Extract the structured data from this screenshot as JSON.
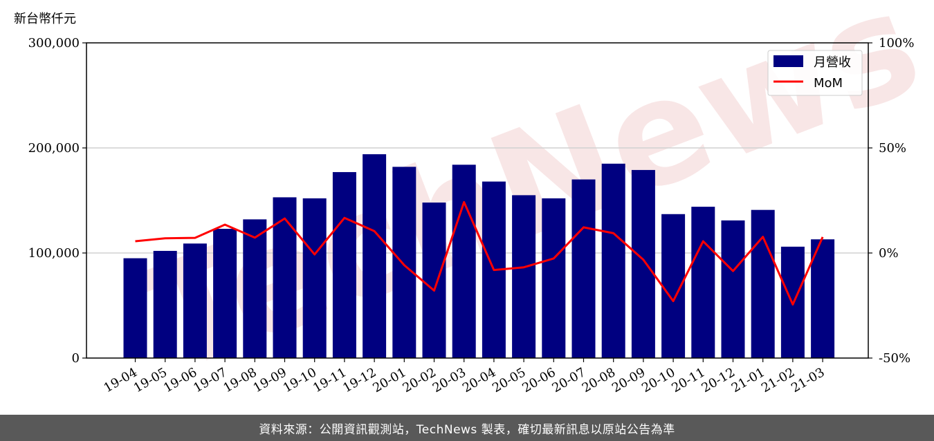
{
  "chart_data": {
    "type": "bar",
    "left_axis_unit": "新台幣仟元",
    "categories": [
      "19-04",
      "19-05",
      "19-06",
      "19-07",
      "19-08",
      "19-09",
      "19-10",
      "19-11",
      "19-12",
      "20-01",
      "20-02",
      "20-03",
      "20-04",
      "20-05",
      "20-06",
      "20-07",
      "20-08",
      "20-09",
      "20-10",
      "20-11",
      "20-12",
      "21-01",
      "21-02",
      "21-03"
    ],
    "series": [
      {
        "name": "月營收",
        "type": "bar",
        "axis": "left",
        "color": "#000080",
        "values": [
          95000,
          102000,
          109000,
          123000,
          132000,
          153000,
          152000,
          177000,
          194000,
          182000,
          148000,
          184000,
          168000,
          155000,
          152000,
          170000,
          185000,
          179000,
          137000,
          144000,
          131000,
          141000,
          106000,
          113000
        ]
      },
      {
        "name": "MoM",
        "type": "line",
        "axis": "right",
        "color": "#ff0000",
        "values": [
          5.6,
          7.0,
          7.2,
          13.5,
          7.3,
          16.4,
          -0.7,
          16.7,
          10.4,
          -5.8,
          -17.9,
          24.2,
          -8.1,
          -6.8,
          -2.6,
          12.2,
          9.4,
          -3.2,
          -22.9,
          5.6,
          -8.6,
          7.7,
          -24.5,
          7.6
        ]
      }
    ],
    "ylim": [
      0,
      300000
    ],
    "y_ticks": [
      "0",
      "100,000",
      "200,000",
      "300,000"
    ],
    "y2lim": [
      -50,
      100
    ],
    "y2_ticks": [
      "-50%",
      "0%",
      "50%",
      "100%"
    ],
    "grid": "horizontal",
    "legend": "top-right"
  },
  "watermark": "TechNews",
  "footer": {
    "text": "資料來源：公開資訊觀測站，TechNews 製表，確切最新訊息以原站公告為準"
  }
}
